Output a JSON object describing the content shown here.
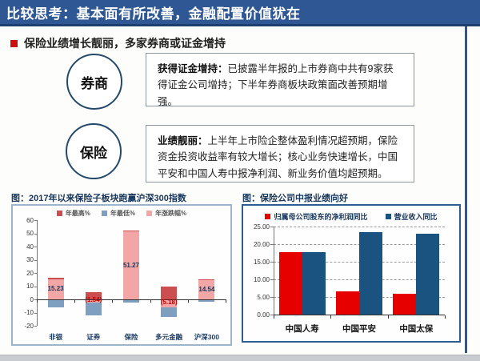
{
  "header": {
    "title": "比较思考：基本面有所改善，金融配置价值犹在"
  },
  "section": {
    "title": "保险业绩增长靓丽，多家券商或证金增持"
  },
  "rows": [
    {
      "circle": "券商",
      "lead": "获得证金增持：",
      "body": "已披露半年报的上市券商中共有9家获得证金公司增持；下半年券商板块政策面改善预期增强。"
    },
    {
      "circle": "保险",
      "lead": "业绩靓丽：",
      "body": "上半年上市险企整体盈利情况超预期，保险资金投资收益率有较大增长；核心业务快速增长，中国平安和中国人寿中报净利润、新业务价值均超预期。"
    }
  ],
  "colors": {
    "header_bg": "#2e5794",
    "accent_red": "#cc1111",
    "navy_label": "#17375e",
    "negative_label_red": "#c00000"
  },
  "chart_data": [
    {
      "type": "bar",
      "title": "图：2017年以来保险子板块跑赢沪深300指数",
      "categories": [
        "非银",
        "证券",
        "保险",
        "多元金融",
        "沪深300"
      ],
      "series": [
        {
          "name": "年最高%",
          "color": "#cd4e4e",
          "values": [
            16.5,
            5.2,
            52.3,
            9.6,
            15.2
          ]
        },
        {
          "name": "年最低%",
          "color": "#7e9fc0",
          "values": [
            -5.2,
            -11.3,
            -1.8,
            -12.8,
            -1.5
          ]
        },
        {
          "name": "年涨跌幅%",
          "color": "#f2a6a5",
          "values": [
            15.23,
            -1.54,
            51.27,
            -5.18,
            14.54
          ],
          "labels": [
            "15.23",
            "(1.54)",
            "51.27",
            "(5.18)",
            "14.54"
          ]
        }
      ],
      "xlabel": "",
      "ylabel": "",
      "ylim": [
        -20,
        60
      ],
      "yticks": [
        60,
        50,
        40,
        30,
        20,
        10,
        0,
        -10,
        -20
      ],
      "grid": false,
      "legend_position": "top"
    },
    {
      "type": "bar",
      "title": "图：保险公司中报业绩向好",
      "categories": [
        "中国人寿",
        "中国平安",
        "中国太保"
      ],
      "series": [
        {
          "name": "归属母公司股东的净利润同比",
          "color": "#e60000",
          "values": [
            17.8,
            6.5,
            6.0
          ]
        },
        {
          "name": "营业收入同比",
          "color": "#1a5380",
          "values": [
            17.8,
            23.5,
            23.0
          ]
        }
      ],
      "xlabel": "",
      "ylabel": "",
      "ylim": [
        0,
        25
      ],
      "yticks": [
        25,
        20,
        15,
        10,
        5,
        0
      ],
      "ytick_format": "0.00",
      "grid": true,
      "legend_position": "top"
    }
  ]
}
